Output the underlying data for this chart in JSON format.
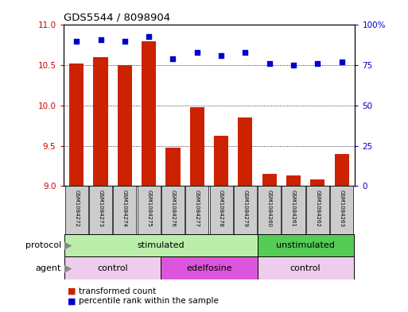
{
  "title": "GDS5544 / 8098904",
  "samples": [
    "GSM1084272",
    "GSM1084273",
    "GSM1084274",
    "GSM1084275",
    "GSM1084276",
    "GSM1084277",
    "GSM1084278",
    "GSM1084279",
    "GSM1084260",
    "GSM1084261",
    "GSM1084262",
    "GSM1084263"
  ],
  "transformed_count": [
    10.52,
    10.6,
    10.5,
    10.8,
    9.48,
    9.98,
    9.62,
    9.85,
    9.15,
    9.13,
    9.08,
    9.4
  ],
  "percentile_rank": [
    90,
    91,
    90,
    93,
    79,
    83,
    81,
    83,
    76,
    75,
    76,
    77
  ],
  "ylim_left": [
    9,
    11
  ],
  "ylim_right": [
    0,
    100
  ],
  "yticks_left": [
    9,
    9.5,
    10,
    10.5,
    11
  ],
  "yticks_right": [
    0,
    25,
    50,
    75,
    100
  ],
  "bar_color": "#cc2200",
  "dot_color": "#0000cc",
  "protocol_labels": [
    {
      "text": "stimulated",
      "start": 0,
      "end": 8,
      "color": "#bbeeaa"
    },
    {
      "text": "unstimulated",
      "start": 8,
      "end": 12,
      "color": "#55cc55"
    }
  ],
  "agent_labels": [
    {
      "text": "control",
      "start": 0,
      "end": 4,
      "color": "#eeccee"
    },
    {
      "text": "edelfosine",
      "start": 4,
      "end": 8,
      "color": "#dd55dd"
    },
    {
      "text": "control",
      "start": 8,
      "end": 12,
      "color": "#eeccee"
    }
  ],
  "legend_bar_label": "transformed count",
  "legend_dot_label": "percentile rank within the sample",
  "protocol_text": "protocol",
  "agent_text": "agent",
  "background_color": "#ffffff",
  "plot_bg_color": "#ffffff",
  "grid_color": "#000000",
  "tick_label_color_left": "#cc0000",
  "tick_label_color_right": "#0000cc",
  "label_box_color": "#cccccc",
  "arrow_color": "#888888"
}
